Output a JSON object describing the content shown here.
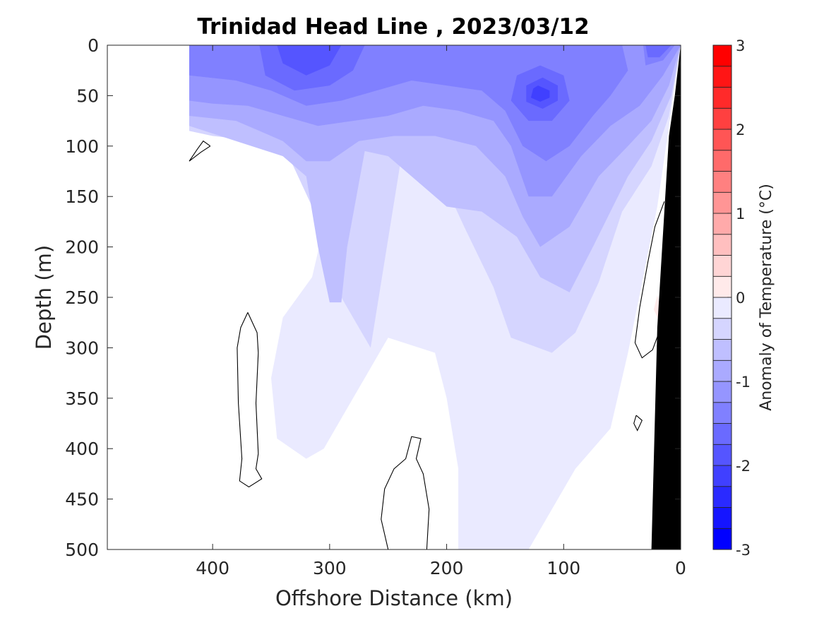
{
  "chart_data": {
    "type": "heatmap",
    "subtype": "filled-contour",
    "title": "Trinidad Head Line , 2023/03/12",
    "xlabel": "Offshore Distance (km)",
    "ylabel": "Depth (m)",
    "xlim": [
      490,
      0
    ],
    "ylim": [
      0,
      500
    ],
    "x_reversed": true,
    "y_reversed": true,
    "x_ticks": [
      400,
      300,
      200,
      100,
      0
    ],
    "y_ticks": [
      0,
      50,
      100,
      150,
      200,
      250,
      300,
      350,
      400,
      450,
      500
    ],
    "x_tick_labels": [
      "400",
      "300",
      "200",
      "100",
      "0"
    ],
    "y_tick_labels": [
      "0",
      "50",
      "100",
      "150",
      "200",
      "250",
      "300",
      "350",
      "400",
      "450",
      "500"
    ],
    "data_extent_km": [
      420,
      0
    ],
    "colorbar": {
      "label": "Anomaly of Temperature (°C)",
      "range": [
        -3,
        3
      ],
      "step": 0.25,
      "ticks": [
        -3,
        -2,
        -1,
        0,
        1,
        2,
        3
      ],
      "tick_labels": [
        "-3",
        "-2",
        "-1",
        "0",
        "1",
        "2",
        "3"
      ],
      "cold_color": "#0000ff",
      "warm_color": "#ff0000",
      "neutral_color": "#ffffff"
    },
    "bathymetry_color": "#000000",
    "bathymetry": [
      {
        "x": 0,
        "y": 0
      },
      {
        "x": 5,
        "y": 50
      },
      {
        "x": 10,
        "y": 90
      },
      {
        "x": 20,
        "y": 280
      },
      {
        "x": 25,
        "y": 500
      },
      {
        "x": 0,
        "y": 500
      }
    ],
    "zero_contours": [
      [
        {
          "x": 370,
          "y": 265
        },
        {
          "x": 362,
          "y": 285
        },
        {
          "x": 361,
          "y": 305
        },
        {
          "x": 363,
          "y": 355
        },
        {
          "x": 361,
          "y": 405
        },
        {
          "x": 363,
          "y": 420
        },
        {
          "x": 358,
          "y": 430
        },
        {
          "x": 369,
          "y": 438
        },
        {
          "x": 377,
          "y": 432
        },
        {
          "x": 375,
          "y": 410
        },
        {
          "x": 378,
          "y": 355
        },
        {
          "x": 379,
          "y": 300
        },
        {
          "x": 376,
          "y": 280
        },
        {
          "x": 370,
          "y": 265
        }
      ],
      [
        {
          "x": 250,
          "y": 500
        },
        {
          "x": 256,
          "y": 470
        },
        {
          "x": 253,
          "y": 440
        },
        {
          "x": 245,
          "y": 420
        },
        {
          "x": 235,
          "y": 410
        },
        {
          "x": 230,
          "y": 388
        },
        {
          "x": 222,
          "y": 390
        },
        {
          "x": 226,
          "y": 410
        },
        {
          "x": 220,
          "y": 425
        },
        {
          "x": 215,
          "y": 460
        },
        {
          "x": 217,
          "y": 500
        }
      ],
      [
        {
          "x": 402,
          "y": 100
        },
        {
          "x": 408,
          "y": 95
        },
        {
          "x": 413,
          "y": 103
        },
        {
          "x": 420,
          "y": 115
        },
        {
          "x": 410,
          "y": 106
        },
        {
          "x": 402,
          "y": 100
        }
      ],
      [
        {
          "x": 14,
          "y": 155
        },
        {
          "x": 22,
          "y": 180
        },
        {
          "x": 28,
          "y": 215
        },
        {
          "x": 35,
          "y": 260
        },
        {
          "x": 39,
          "y": 295
        },
        {
          "x": 33,
          "y": 310
        },
        {
          "x": 24,
          "y": 302
        },
        {
          "x": 17,
          "y": 280
        }
      ],
      [
        {
          "x": 38,
          "y": 367
        },
        {
          "x": 33,
          "y": 372
        },
        {
          "x": 37,
          "y": 382
        },
        {
          "x": 40,
          "y": 375
        },
        {
          "x": 38,
          "y": 367
        }
      ]
    ],
    "fields": [
      {
        "value": -0.25,
        "points": [
          {
            "x": 420,
            "y": 0
          },
          {
            "x": 0,
            "y": 0
          },
          {
            "x": 20,
            "y": 160
          },
          {
            "x": 45,
            "y": 305
          },
          {
            "x": 60,
            "y": 380
          },
          {
            "x": 90,
            "y": 420
          },
          {
            "x": 130,
            "y": 500
          },
          {
            "x": 190,
            "y": 500
          },
          {
            "x": 190,
            "y": 420
          },
          {
            "x": 200,
            "y": 350
          },
          {
            "x": 210,
            "y": 305
          },
          {
            "x": 250,
            "y": 290
          },
          {
            "x": 270,
            "y": 330
          },
          {
            "x": 290,
            "y": 370
          },
          {
            "x": 305,
            "y": 400
          },
          {
            "x": 320,
            "y": 410
          },
          {
            "x": 345,
            "y": 390
          },
          {
            "x": 350,
            "y": 330
          },
          {
            "x": 340,
            "y": 270
          },
          {
            "x": 315,
            "y": 230
          },
          {
            "x": 305,
            "y": 180
          },
          {
            "x": 320,
            "y": 110
          },
          {
            "x": 350,
            "y": 95
          },
          {
            "x": 380,
            "y": 85
          },
          {
            "x": 420,
            "y": 80
          }
        ]
      },
      {
        "value": -0.5,
        "points": [
          {
            "x": 420,
            "y": 0
          },
          {
            "x": 0,
            "y": 0
          },
          {
            "x": 10,
            "y": 70
          },
          {
            "x": 25,
            "y": 120
          },
          {
            "x": 50,
            "y": 165
          },
          {
            "x": 70,
            "y": 235
          },
          {
            "x": 90,
            "y": 285
          },
          {
            "x": 110,
            "y": 305
          },
          {
            "x": 145,
            "y": 290
          },
          {
            "x": 160,
            "y": 240
          },
          {
            "x": 185,
            "y": 180
          },
          {
            "x": 205,
            "y": 130
          },
          {
            "x": 240,
            "y": 120
          },
          {
            "x": 265,
            "y": 300
          },
          {
            "x": 280,
            "y": 270
          },
          {
            "x": 300,
            "y": 230
          },
          {
            "x": 315,
            "y": 160
          },
          {
            "x": 335,
            "y": 110
          },
          {
            "x": 360,
            "y": 95
          },
          {
            "x": 400,
            "y": 90
          },
          {
            "x": 420,
            "y": 85
          }
        ]
      },
      {
        "value": -0.75,
        "points": [
          {
            "x": 420,
            "y": 0
          },
          {
            "x": 0,
            "y": 0
          },
          {
            "x": 8,
            "y": 50
          },
          {
            "x": 25,
            "y": 95
          },
          {
            "x": 45,
            "y": 130
          },
          {
            "x": 75,
            "y": 200
          },
          {
            "x": 95,
            "y": 245
          },
          {
            "x": 120,
            "y": 230
          },
          {
            "x": 140,
            "y": 190
          },
          {
            "x": 170,
            "y": 165
          },
          {
            "x": 200,
            "y": 160
          },
          {
            "x": 220,
            "y": 140
          },
          {
            "x": 250,
            "y": 110
          },
          {
            "x": 270,
            "y": 105
          },
          {
            "x": 285,
            "y": 200
          },
          {
            "x": 290,
            "y": 255
          },
          {
            "x": 300,
            "y": 255
          },
          {
            "x": 310,
            "y": 200
          },
          {
            "x": 320,
            "y": 130
          },
          {
            "x": 340,
            "y": 110
          },
          {
            "x": 380,
            "y": 95
          },
          {
            "x": 420,
            "y": 80
          }
        ]
      },
      {
        "value": -1.0,
        "points": [
          {
            "x": 420,
            "y": 0
          },
          {
            "x": 0,
            "y": 0
          },
          {
            "x": 10,
            "y": 40
          },
          {
            "x": 25,
            "y": 75
          },
          {
            "x": 45,
            "y": 100
          },
          {
            "x": 70,
            "y": 130
          },
          {
            "x": 95,
            "y": 180
          },
          {
            "x": 120,
            "y": 200
          },
          {
            "x": 135,
            "y": 170
          },
          {
            "x": 150,
            "y": 130
          },
          {
            "x": 175,
            "y": 100
          },
          {
            "x": 210,
            "y": 90
          },
          {
            "x": 245,
            "y": 90
          },
          {
            "x": 275,
            "y": 95
          },
          {
            "x": 300,
            "y": 115
          },
          {
            "x": 320,
            "y": 115
          },
          {
            "x": 340,
            "y": 95
          },
          {
            "x": 380,
            "y": 75
          },
          {
            "x": 420,
            "y": 70
          }
        ]
      },
      {
        "value": -1.25,
        "points": [
          {
            "x": 420,
            "y": 0
          },
          {
            "x": 0,
            "y": 0
          },
          {
            "x": 15,
            "y": 30
          },
          {
            "x": 35,
            "y": 60
          },
          {
            "x": 60,
            "y": 80
          },
          {
            "x": 85,
            "y": 110
          },
          {
            "x": 110,
            "y": 150
          },
          {
            "x": 130,
            "y": 150
          },
          {
            "x": 145,
            "y": 100
          },
          {
            "x": 160,
            "y": 75
          },
          {
            "x": 190,
            "y": 65
          },
          {
            "x": 220,
            "y": 60
          },
          {
            "x": 250,
            "y": 70
          },
          {
            "x": 280,
            "y": 75
          },
          {
            "x": 310,
            "y": 80
          },
          {
            "x": 340,
            "y": 70
          },
          {
            "x": 370,
            "y": 60
          },
          {
            "x": 400,
            "y": 58
          },
          {
            "x": 420,
            "y": 55
          }
        ]
      },
      {
        "value": -1.5,
        "points": [
          {
            "x": 420,
            "y": 0
          },
          {
            "x": 50,
            "y": 0
          },
          {
            "x": 45,
            "y": 25
          },
          {
            "x": 60,
            "y": 50
          },
          {
            "x": 75,
            "y": 70
          },
          {
            "x": 95,
            "y": 100
          },
          {
            "x": 115,
            "y": 115
          },
          {
            "x": 135,
            "y": 100
          },
          {
            "x": 150,
            "y": 65
          },
          {
            "x": 170,
            "y": 45
          },
          {
            "x": 200,
            "y": 40
          },
          {
            "x": 230,
            "y": 35
          },
          {
            "x": 260,
            "y": 45
          },
          {
            "x": 290,
            "y": 55
          },
          {
            "x": 320,
            "y": 60
          },
          {
            "x": 350,
            "y": 45
          },
          {
            "x": 380,
            "y": 35
          },
          {
            "x": 420,
            "y": 30
          }
        ]
      },
      {
        "value": -1.5,
        "points": [
          {
            "x": 32,
            "y": 0
          },
          {
            "x": 5,
            "y": 0
          },
          {
            "x": 15,
            "y": 15
          },
          {
            "x": 30,
            "y": 20
          }
        ]
      },
      {
        "value": -1.75,
        "points": [
          {
            "x": 360,
            "y": 0
          },
          {
            "x": 270,
            "y": 0
          },
          {
            "x": 280,
            "y": 25
          },
          {
            "x": 300,
            "y": 40
          },
          {
            "x": 330,
            "y": 45
          },
          {
            "x": 355,
            "y": 30
          }
        ]
      },
      {
        "value": -1.75,
        "points": [
          {
            "x": 120,
            "y": 20
          },
          {
            "x": 100,
            "y": 30
          },
          {
            "x": 95,
            "y": 55
          },
          {
            "x": 110,
            "y": 75
          },
          {
            "x": 130,
            "y": 75
          },
          {
            "x": 145,
            "y": 55
          },
          {
            "x": 140,
            "y": 30
          }
        ]
      },
      {
        "value": -1.75,
        "points": [
          {
            "x": 30,
            "y": 0
          },
          {
            "x": 8,
            "y": 0
          },
          {
            "x": 18,
            "y": 12
          },
          {
            "x": 28,
            "y": 12
          }
        ]
      },
      {
        "value": -2.0,
        "points": [
          {
            "x": 345,
            "y": 0
          },
          {
            "x": 290,
            "y": 0
          },
          {
            "x": 300,
            "y": 20
          },
          {
            "x": 320,
            "y": 30
          },
          {
            "x": 340,
            "y": 18
          }
        ]
      },
      {
        "value": -2.0,
        "points": [
          {
            "x": 118,
            "y": 32
          },
          {
            "x": 105,
            "y": 40
          },
          {
            "x": 105,
            "y": 55
          },
          {
            "x": 118,
            "y": 63
          },
          {
            "x": 132,
            "y": 56
          },
          {
            "x": 132,
            "y": 40
          }
        ]
      },
      {
        "value": -2.25,
        "points": [
          {
            "x": 122,
            "y": 40
          },
          {
            "x": 112,
            "y": 45
          },
          {
            "x": 112,
            "y": 52
          },
          {
            "x": 120,
            "y": 56
          },
          {
            "x": 128,
            "y": 52
          },
          {
            "x": 126,
            "y": 43
          }
        ]
      },
      {
        "value": 0.25,
        "points": [
          {
            "x": 20,
            "y": 248
          },
          {
            "x": 17,
            "y": 262
          },
          {
            "x": 19,
            "y": 272
          },
          {
            "x": 23,
            "y": 262
          }
        ]
      }
    ]
  }
}
